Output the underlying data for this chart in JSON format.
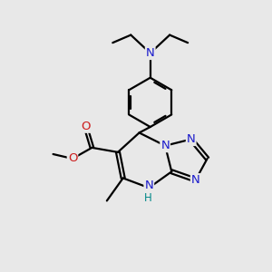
{
  "bg_color": "#e8e8e8",
  "bond_color": "#000000",
  "bond_lw": 1.6,
  "dbo": 0.028,
  "fs": 9.5,
  "colors": {
    "N": "#1a1acc",
    "O": "#cc1a1a",
    "H": "#008888",
    "C": "#000000"
  },
  "xlim": [
    -0.5,
    3.5
  ],
  "ylim": [
    -0.2,
    4.0
  ]
}
